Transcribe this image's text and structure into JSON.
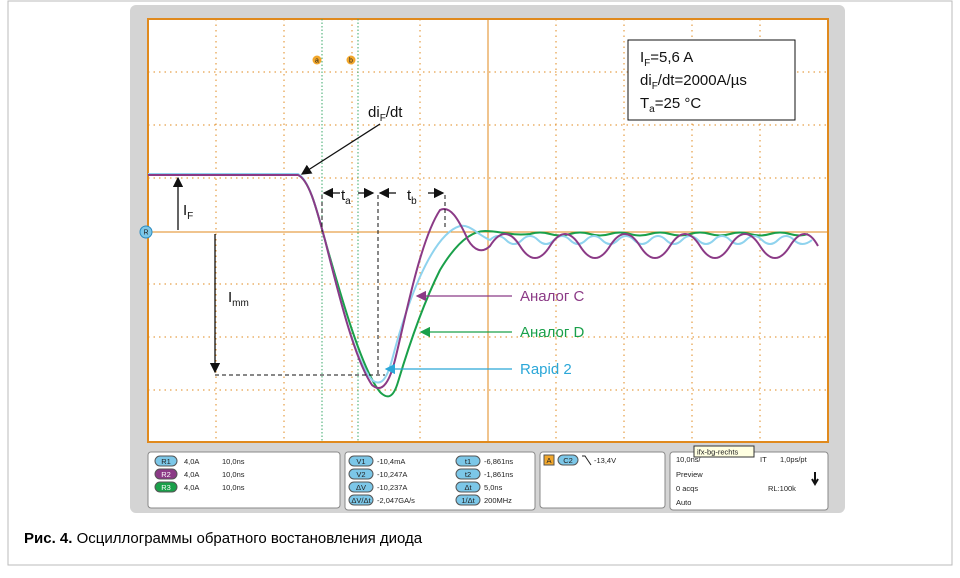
{
  "figure": {
    "annotations": {
      "if_box": [
        [
          "I",
          "F",
          "=5,6 A"
        ],
        [
          "di",
          "F",
          "/dt=2000A/µs"
        ],
        [
          "T",
          "a",
          "=25 °C"
        ]
      ],
      "di_dt": [
        "di",
        "F",
        "/dt"
      ],
      "ta": [
        "t",
        "a"
      ],
      "tb": [
        "t",
        "b"
      ],
      "if": [
        "I",
        "F"
      ],
      "imm": [
        "I",
        "mm"
      ],
      "traces": [
        "Аналог C",
        "Аналог D",
        "Rapid 2"
      ],
      "markers": [
        "a",
        "b",
        "R"
      ]
    },
    "status_bar": {
      "channels": [
        [
          "R1",
          "4,0A",
          "10,0ns"
        ],
        [
          "R2",
          "4,0A",
          "10,0ns"
        ],
        [
          "R3",
          "4,0A",
          "10,0ns"
        ]
      ],
      "measurements": [
        [
          "V1",
          "-10,4mA",
          "t1",
          "-6,861ns"
        ],
        [
          "V2",
          "-10,247A",
          "t2",
          "-1,861ns"
        ],
        [
          "ΔV",
          "-10,237A",
          "Δt",
          "5,0ns"
        ],
        [
          "ΔV/Δt",
          "-2,047GA/s",
          "1/Δt",
          "200MHz"
        ]
      ],
      "trigger": [
        "A",
        "C2",
        "-13,4V"
      ],
      "acquisition": [
        "10,0ns/",
        "IT",
        "1,0ps/pt",
        "Preview",
        "0 acqs",
        "RL:100k",
        "Auto"
      ],
      "tooltip": "ifx-bg-rechts"
    },
    "caption": {
      "label": "Рис. 4.",
      "text": "Осциллограммы обратного востановления диода"
    }
  }
}
